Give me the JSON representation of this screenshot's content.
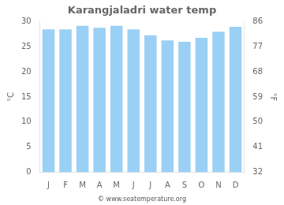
{
  "chart_data": {
    "type": "bar",
    "title": "Karangjaladri water temp",
    "categories": [
      "J",
      "F",
      "M",
      "A",
      "M",
      "J",
      "J",
      "A",
      "S",
      "O",
      "N",
      "D"
    ],
    "values": [
      28.5,
      28.5,
      29.2,
      28.8,
      29.2,
      28.5,
      27.3,
      26.3,
      26.0,
      26.8,
      28.0,
      29.0
    ],
    "ylabel": "°C",
    "ylim": [
      0,
      30
    ],
    "yticks": [
      0,
      5,
      10,
      15,
      20,
      25,
      30
    ],
    "y2label": "°F",
    "y2lim": [
      32,
      86
    ],
    "y2ticks": [
      32,
      41,
      50,
      59,
      68,
      77,
      86
    ],
    "grid": false,
    "annotations": [
      "© www.seatemperature.org"
    ]
  }
}
